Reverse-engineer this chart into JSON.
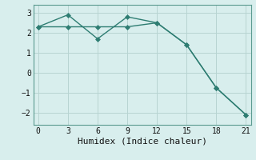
{
  "line1_x": [
    0,
    3,
    6,
    9,
    12,
    15,
    18,
    21
  ],
  "line1_y": [
    2.3,
    2.3,
    2.3,
    2.3,
    2.5,
    1.4,
    -0.75,
    -2.1
  ],
  "line2_x": [
    0,
    3,
    6,
    9,
    12,
    15,
    18,
    21
  ],
  "line2_y": [
    2.3,
    2.9,
    1.7,
    2.8,
    2.5,
    1.4,
    -0.75,
    -2.1
  ],
  "line_color": "#2e7d72",
  "bg_color": "#d8eeed",
  "grid_color": "#b8d4d2",
  "xlabel": "Humidex (Indice chaleur)",
  "xlim": [
    -0.5,
    21.5
  ],
  "ylim": [
    -2.6,
    3.4
  ],
  "xticks": [
    0,
    3,
    6,
    9,
    12,
    15,
    18,
    21
  ],
  "yticks": [
    -2,
    -1,
    0,
    1,
    2,
    3
  ],
  "marker": "D",
  "markersize": 3.0,
  "linewidth": 1.0,
  "xlabel_fontsize": 8,
  "tick_fontsize": 7
}
